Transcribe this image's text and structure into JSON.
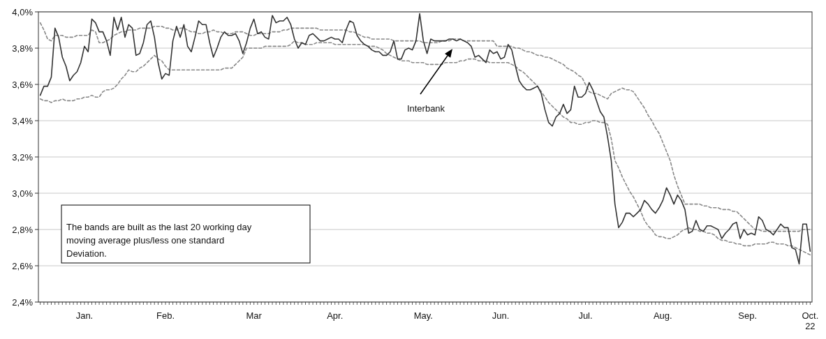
{
  "chart_data": {
    "type": "line",
    "categories": [
      null,
      null,
      null,
      null,
      null,
      null,
      null,
      null,
      null,
      null,
      null,
      null,
      "Jan.",
      null,
      null,
      null,
      null,
      null,
      null,
      null,
      null,
      null,
      null,
      null,
      null,
      null,
      null,
      null,
      null,
      null,
      null,
      null,
      null,
      null,
      "Feb.",
      null,
      null,
      null,
      null,
      null,
      null,
      null,
      null,
      null,
      null,
      null,
      null,
      null,
      null,
      null,
      null,
      null,
      null,
      null,
      null,
      null,
      null,
      null,
      "Mar",
      null,
      null,
      null,
      null,
      null,
      null,
      null,
      null,
      null,
      null,
      null,
      null,
      null,
      null,
      null,
      null,
      null,
      null,
      null,
      null,
      null,
      "Apr.",
      null,
      null,
      null,
      null,
      null,
      null,
      null,
      null,
      null,
      null,
      null,
      null,
      null,
      null,
      null,
      null,
      null,
      null,
      null,
      null,
      null,
      null,
      null,
      "May.",
      null,
      null,
      null,
      null,
      null,
      null,
      null,
      null,
      null,
      null,
      null,
      null,
      null,
      null,
      null,
      null,
      null,
      null,
      null,
      null,
      "Jun.",
      null,
      null,
      null,
      null,
      null,
      null,
      null,
      null,
      null,
      null,
      null,
      null,
      null,
      null,
      null,
      null,
      null,
      null,
      null,
      null,
      null,
      null,
      "Jul.",
      null,
      null,
      null,
      null,
      null,
      null,
      null,
      null,
      null,
      null,
      null,
      null,
      null,
      null,
      null,
      null,
      null,
      null,
      null,
      null,
      "Aug.",
      null,
      null,
      null,
      null,
      null,
      null,
      null,
      null,
      null,
      null,
      null,
      null,
      null,
      null,
      null,
      null,
      null,
      null,
      null,
      null,
      null,
      null,
      "Sep.",
      null,
      null,
      null,
      null,
      null,
      null,
      null,
      null,
      null,
      null,
      null,
      null,
      null,
      null,
      null,
      null,
      "Oct.\n22"
    ],
    "ylim": [
      2.4,
      4.0
    ],
    "yticks": [
      {
        "value": 2.4,
        "label": "2,4%"
      },
      {
        "value": 2.6,
        "label": "2,6%"
      },
      {
        "value": 2.8,
        "label": "2,8%"
      },
      {
        "value": 3.0,
        "label": "3,0%"
      },
      {
        "value": 3.2,
        "label": "3,2%"
      },
      {
        "value": 3.4,
        "label": "3,4%"
      },
      {
        "value": 3.6,
        "label": "3,6%"
      },
      {
        "value": 3.8,
        "label": "3,8%"
      },
      {
        "value": 4.0,
        "label": "4,0%"
      }
    ],
    "grid": "y",
    "marker": "none",
    "series": [
      {
        "color": "#888888",
        "line_style": "dashed",
        "values": [
          3.94,
          3.9,
          3.85,
          3.84,
          3.87,
          3.87,
          3.87,
          3.86,
          3.86,
          3.86,
          3.87,
          3.87,
          3.87,
          3.87,
          3.9,
          3.89,
          3.83,
          3.83,
          3.84,
          3.85,
          3.87,
          3.88,
          3.89,
          3.89,
          3.9,
          3.9,
          3.9,
          3.91,
          3.91,
          3.91,
          3.91,
          3.92,
          3.92,
          3.92,
          3.91,
          3.91,
          3.9,
          3.9,
          3.91,
          3.91,
          3.9,
          3.89,
          3.89,
          3.88,
          3.88,
          3.89,
          3.89,
          3.9,
          3.89,
          3.89,
          3.88,
          3.88,
          3.88,
          3.89,
          3.89,
          3.89,
          3.88,
          3.87,
          3.87,
          3.88,
          3.88,
          3.88,
          3.88,
          3.89,
          3.89,
          3.89,
          3.9,
          3.9,
          3.91,
          3.91,
          3.91,
          3.91,
          3.91,
          3.91,
          3.91,
          3.91,
          3.9,
          3.9,
          3.9,
          3.9,
          3.9,
          3.9,
          3.9,
          3.9,
          3.89,
          3.89,
          3.88,
          3.87,
          3.86,
          3.86,
          3.85,
          3.85,
          3.85,
          3.85,
          3.85,
          3.85,
          3.84,
          3.84,
          3.84,
          3.84,
          3.84,
          3.84,
          3.84,
          3.84,
          3.83,
          3.83,
          3.83,
          3.83,
          3.83,
          3.84,
          3.84,
          3.84,
          3.85,
          3.85,
          3.85,
          3.84,
          3.84,
          3.84,
          3.84,
          3.84,
          3.84,
          3.84,
          3.84,
          3.84,
          3.81,
          3.81,
          3.81,
          3.81,
          3.81,
          3.8,
          3.8,
          3.79,
          3.78,
          3.78,
          3.77,
          3.76,
          3.76,
          3.75,
          3.75,
          3.74,
          3.73,
          3.72,
          3.71,
          3.69,
          3.68,
          3.67,
          3.65,
          3.64,
          3.6,
          3.56,
          3.55,
          3.55,
          3.54,
          3.53,
          3.52,
          3.55,
          3.56,
          3.57,
          3.58,
          3.57,
          3.57,
          3.56,
          3.53,
          3.5,
          3.47,
          3.43,
          3.4,
          3.36,
          3.33,
          3.28,
          3.23,
          3.18,
          3.1,
          3.04,
          2.99,
          2.94,
          2.94,
          2.94,
          2.94,
          2.94,
          2.93,
          2.93,
          2.92,
          2.92,
          2.92,
          2.91,
          2.91,
          2.91,
          2.9,
          2.9,
          2.88,
          2.86,
          2.84,
          2.82,
          2.8,
          2.8,
          2.79,
          2.79,
          2.79,
          2.79,
          2.79,
          2.79,
          2.79,
          2.79,
          2.79,
          2.79,
          2.79,
          2.8,
          2.8,
          2.8
        ]
      },
      {
        "color": "#888888",
        "line_style": "dashed",
        "values": [
          3.52,
          3.51,
          3.51,
          3.5,
          3.51,
          3.51,
          3.52,
          3.51,
          3.51,
          3.51,
          3.52,
          3.52,
          3.53,
          3.53,
          3.54,
          3.53,
          3.53,
          3.56,
          3.57,
          3.57,
          3.58,
          3.6,
          3.63,
          3.65,
          3.68,
          3.67,
          3.67,
          3.69,
          3.7,
          3.72,
          3.74,
          3.76,
          3.74,
          3.73,
          3.7,
          3.68,
          3.68,
          3.68,
          3.68,
          3.68,
          3.68,
          3.68,
          3.68,
          3.68,
          3.68,
          3.68,
          3.68,
          3.68,
          3.68,
          3.68,
          3.69,
          3.69,
          3.69,
          3.71,
          3.73,
          3.75,
          3.8,
          3.8,
          3.8,
          3.8,
          3.8,
          3.81,
          3.81,
          3.81,
          3.81,
          3.81,
          3.81,
          3.81,
          3.82,
          3.84,
          3.83,
          3.83,
          3.82,
          3.82,
          3.82,
          3.83,
          3.83,
          3.83,
          3.83,
          3.83,
          3.82,
          3.82,
          3.82,
          3.82,
          3.82,
          3.82,
          3.82,
          3.82,
          3.82,
          3.81,
          3.81,
          3.81,
          3.8,
          3.79,
          3.77,
          3.76,
          3.75,
          3.74,
          3.73,
          3.73,
          3.73,
          3.72,
          3.72,
          3.72,
          3.72,
          3.71,
          3.71,
          3.71,
          3.71,
          3.71,
          3.72,
          3.72,
          3.72,
          3.72,
          3.73,
          3.73,
          3.74,
          3.74,
          3.74,
          3.73,
          3.73,
          3.73,
          3.72,
          3.72,
          3.72,
          3.72,
          3.72,
          3.72,
          3.71,
          3.7,
          3.68,
          3.67,
          3.65,
          3.63,
          3.61,
          3.59,
          3.56,
          3.53,
          3.5,
          3.48,
          3.46,
          3.44,
          3.42,
          3.41,
          3.39,
          3.39,
          3.38,
          3.38,
          3.39,
          3.39,
          3.4,
          3.4,
          3.39,
          3.39,
          3.38,
          3.3,
          3.18,
          3.14,
          3.09,
          3.05,
          3.01,
          2.98,
          2.94,
          2.9,
          2.85,
          2.82,
          2.8,
          2.77,
          2.76,
          2.76,
          2.75,
          2.75,
          2.76,
          2.77,
          2.79,
          2.8,
          2.81,
          2.8,
          2.8,
          2.79,
          2.79,
          2.78,
          2.78,
          2.77,
          2.75,
          2.74,
          2.74,
          2.73,
          2.73,
          2.72,
          2.72,
          2.71,
          2.71,
          2.71,
          2.72,
          2.72,
          2.72,
          2.72,
          2.73,
          2.73,
          2.72,
          2.72,
          2.72,
          2.71,
          2.71,
          2.7,
          2.69,
          2.68,
          2.67,
          2.66
        ]
      },
      {
        "color": "#333333",
        "line_style": "solid",
        "values": [
          3.54,
          3.59,
          3.59,
          3.64,
          3.91,
          3.86,
          3.75,
          3.7,
          3.62,
          3.65,
          3.67,
          3.72,
          3.81,
          3.78,
          3.96,
          3.94,
          3.89,
          3.89,
          3.84,
          3.76,
          3.97,
          3.9,
          3.97,
          3.86,
          3.93,
          3.91,
          3.76,
          3.77,
          3.83,
          3.93,
          3.95,
          3.86,
          3.72,
          3.63,
          3.66,
          3.65,
          3.84,
          3.92,
          3.86,
          3.93,
          3.81,
          3.78,
          3.86,
          3.95,
          3.93,
          3.93,
          3.83,
          3.75,
          3.8,
          3.86,
          3.89,
          3.87,
          3.87,
          3.88,
          3.84,
          3.77,
          3.83,
          3.91,
          3.96,
          3.88,
          3.89,
          3.86,
          3.85,
          3.98,
          3.94,
          3.95,
          3.95,
          3.97,
          3.93,
          3.85,
          3.8,
          3.83,
          3.82,
          3.87,
          3.88,
          3.86,
          3.84,
          3.84,
          3.85,
          3.86,
          3.85,
          3.85,
          3.83,
          3.9,
          3.95,
          3.94,
          3.87,
          3.84,
          3.82,
          3.81,
          3.79,
          3.78,
          3.78,
          3.76,
          3.76,
          3.78,
          3.84,
          3.74,
          3.74,
          3.79,
          3.8,
          3.79,
          3.84,
          3.99,
          3.84,
          3.77,
          3.85,
          3.84,
          3.84,
          3.84,
          3.84,
          3.85,
          3.85,
          3.84,
          3.85,
          3.84,
          3.83,
          3.81,
          3.75,
          3.76,
          3.74,
          3.72,
          3.79,
          3.77,
          3.78,
          3.74,
          3.75,
          3.82,
          3.79,
          3.7,
          3.62,
          3.59,
          3.57,
          3.57,
          3.58,
          3.59,
          3.55,
          3.46,
          3.39,
          3.37,
          3.42,
          3.44,
          3.49,
          3.44,
          3.46,
          3.59,
          3.53,
          3.53,
          3.55,
          3.61,
          3.57,
          3.51,
          3.45,
          3.42,
          3.31,
          3.18,
          2.94,
          2.81,
          2.84,
          2.89,
          2.89,
          2.87,
          2.89,
          2.91,
          2.96,
          2.94,
          2.91,
          2.89,
          2.92,
          2.96,
          3.03,
          2.99,
          2.94,
          2.99,
          2.96,
          2.91,
          2.78,
          2.79,
          2.85,
          2.8,
          2.79,
          2.82,
          2.82,
          2.81,
          2.8,
          2.75,
          2.78,
          2.8,
          2.83,
          2.84,
          2.75,
          2.8,
          2.77,
          2.78,
          2.77,
          2.87,
          2.85,
          2.8,
          2.79,
          2.77,
          2.8,
          2.83,
          2.81,
          2.81,
          2.7,
          2.69,
          2.61,
          2.83,
          2.83,
          2.68
        ]
      }
    ],
    "annotations": [
      "Interbank",
      "The bands are built as the last 20 working day moving average plus/less one standard Deviation."
    ]
  }
}
